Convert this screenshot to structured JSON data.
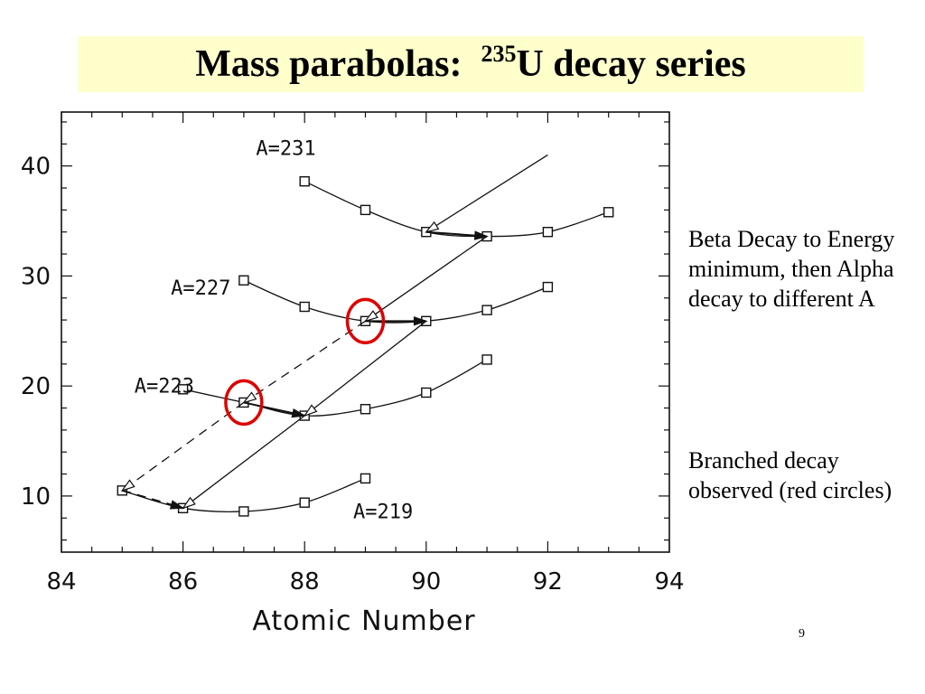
{
  "title": {
    "prefix": "Mass parabolas:",
    "superscript": "235",
    "suffix": "U decay series"
  },
  "notes": [
    "Beta Decay to Energy minimum, then Alpha decay to different A",
    "Branched decay observed (red circles)"
  ],
  "page_number": "9",
  "colors": {
    "title_background": "#ffffcc",
    "highlight": "#dd0000",
    "ink": "#111111"
  },
  "chart_data": {
    "type": "scatter",
    "xlabel": "Atomic Number",
    "ylabel": "",
    "xlim": [
      84,
      94
    ],
    "ylim": [
      4.9,
      44.9
    ],
    "x_ticks": [
      84,
      86,
      88,
      90,
      92,
      94
    ],
    "y_ticks": [
      10,
      20,
      30,
      40
    ],
    "grid": false,
    "series": [
      {
        "name": "A=231",
        "label_at": [
          87.2,
          41
        ],
        "x": [
          88,
          89,
          90,
          91,
          92,
          93
        ],
        "y": [
          38.6,
          36.0,
          34.0,
          33.6,
          34.0,
          35.8
        ]
      },
      {
        "name": "A=227",
        "label_at": [
          85.8,
          28.3
        ],
        "x": [
          87,
          88,
          89,
          90,
          91,
          92
        ],
        "y": [
          29.6,
          27.2,
          25.9,
          25.9,
          26.9,
          29.0
        ]
      },
      {
        "name": "A=223",
        "label_at": [
          85.2,
          19.4
        ],
        "x": [
          86,
          87,
          88,
          89,
          90,
          91
        ],
        "y": [
          19.7,
          18.5,
          17.3,
          17.9,
          19.4,
          22.4
        ]
      },
      {
        "name": "A=219",
        "label_at": [
          88.8,
          8.0
        ],
        "x": [
          85,
          86,
          87,
          88,
          89
        ],
        "y": [
          10.5,
          8.9,
          8.6,
          9.4,
          11.6
        ]
      }
    ],
    "decay_arrows": [
      {
        "kind": "alpha",
        "style": "solid",
        "from": [
          92,
          41.0
        ],
        "to": [
          90,
          34.0
        ]
      },
      {
        "kind": "beta",
        "style": "solid",
        "from": [
          90,
          34.0
        ],
        "to": [
          91,
          33.6
        ]
      },
      {
        "kind": "alpha",
        "style": "solid",
        "from": [
          91,
          33.6
        ],
        "to": [
          89,
          25.9
        ]
      },
      {
        "kind": "beta",
        "style": "solid",
        "from": [
          89,
          25.9
        ],
        "to": [
          90,
          25.9
        ]
      },
      {
        "kind": "alpha",
        "style": "solid",
        "from": [
          90,
          25.9
        ],
        "to": [
          88,
          17.3
        ]
      },
      {
        "kind": "beta",
        "style": "solid",
        "from": [
          87,
          18.5
        ],
        "to": [
          88,
          17.3
        ]
      },
      {
        "kind": "alpha",
        "style": "dashed",
        "from": [
          89,
          25.9
        ],
        "to": [
          87,
          18.5
        ]
      },
      {
        "kind": "alpha",
        "style": "solid",
        "from": [
          88,
          17.3
        ],
        "to": [
          86,
          8.9
        ]
      },
      {
        "kind": "alpha",
        "style": "dashed",
        "from": [
          87,
          18.5
        ],
        "to": [
          85,
          10.5
        ]
      },
      {
        "kind": "beta",
        "style": "dashed",
        "from": [
          85,
          10.5
        ],
        "to": [
          86,
          8.9
        ]
      }
    ],
    "highlight_circles": [
      {
        "x": 89,
        "y": 25.9
      },
      {
        "x": 87,
        "y": 18.5
      }
    ]
  }
}
